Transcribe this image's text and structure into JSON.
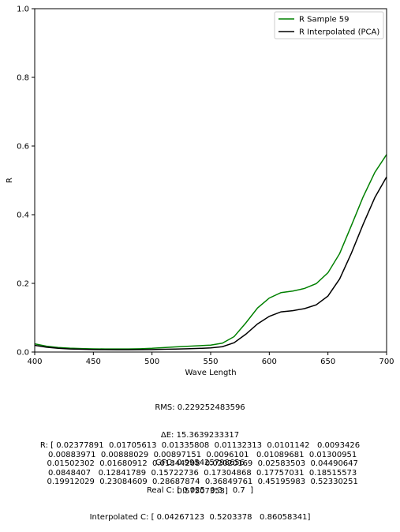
{
  "chart_data": {
    "type": "line",
    "title": "",
    "xlabel": "Wave Length",
    "ylabel": "R",
    "xlim": [
      400,
      700
    ],
    "ylim": [
      0,
      1.0
    ],
    "xticks": [
      400,
      450,
      500,
      550,
      600,
      650,
      700
    ],
    "yticks": [
      0,
      0.2,
      0.4,
      0.6,
      0.8,
      1.0
    ],
    "xtick_labels": [
      "400",
      "450",
      "500",
      "550",
      "600",
      "650",
      "700"
    ],
    "ytick_labels": [
      "0.0",
      "0.2",
      "0.4",
      "0.6",
      "0.8",
      "1.0"
    ],
    "legend_position": "top-right",
    "grid": false,
    "x": [
      400,
      410,
      420,
      430,
      440,
      450,
      460,
      470,
      480,
      490,
      500,
      510,
      520,
      530,
      540,
      550,
      560,
      570,
      580,
      590,
      600,
      610,
      620,
      630,
      640,
      650,
      660,
      670,
      680,
      690,
      700
    ],
    "series": [
      {
        "name": "R Sample 59",
        "color": "#008000",
        "values": [
          0.02377891,
          0.01705613,
          0.01335808,
          0.01132313,
          0.0101142,
          0.0093426,
          0.00883971,
          0.00888029,
          0.00897151,
          0.0096101,
          0.01089681,
          0.01300951,
          0.01502302,
          0.01680912,
          0.01844208,
          0.02020169,
          0.02583503,
          0.04490647,
          0.0848407,
          0.12841789,
          0.15722736,
          0.17304868,
          0.17757031,
          0.18515573,
          0.19912029,
          0.23084609,
          0.28687874,
          0.36849761,
          0.45195983,
          0.52330251,
          0.57507353
        ]
      },
      {
        "name": "R Interpolated (PCA)",
        "color": "#000000",
        "values": [
          0.0195,
          0.014,
          0.0108,
          0.009,
          0.008,
          0.0073,
          0.0068,
          0.0067,
          0.0067,
          0.0069,
          0.0073,
          0.0079,
          0.0087,
          0.0096,
          0.0106,
          0.012,
          0.0155,
          0.027,
          0.052,
          0.082,
          0.104,
          0.117,
          0.1205,
          0.1265,
          0.1375,
          0.163,
          0.213,
          0.288,
          0.372,
          0.45,
          0.51
        ]
      }
    ]
  },
  "stats": {
    "rms": "RMS: 0.229252483596",
    "delta_e": "ΔE: 15.3639233317",
    "gfc": "GFC: 0.995425798656",
    "real_c": "Real C: [ 0.025  0.3    0.7  ]",
    "interp_c": "Interpolated C: [ 0.04267123  0.5203378   0.86058341]"
  },
  "r_text": "R: [ 0.02377891  0.01705613  0.01335808  0.01132313  0.0101142   0.0093426\n  0.00883971  0.00888029  0.00897151  0.0096101   0.01089681  0.01300951\n  0.01502302  0.01680912  0.01844208  0.02020169  0.02583503  0.04490647\n  0.0848407   0.12841789  0.15722736  0.17304868  0.17757031  0.18515573\n  0.19912029  0.23084609  0.28687874  0.36849761  0.45195983  0.52330251\n  0.57507353]"
}
